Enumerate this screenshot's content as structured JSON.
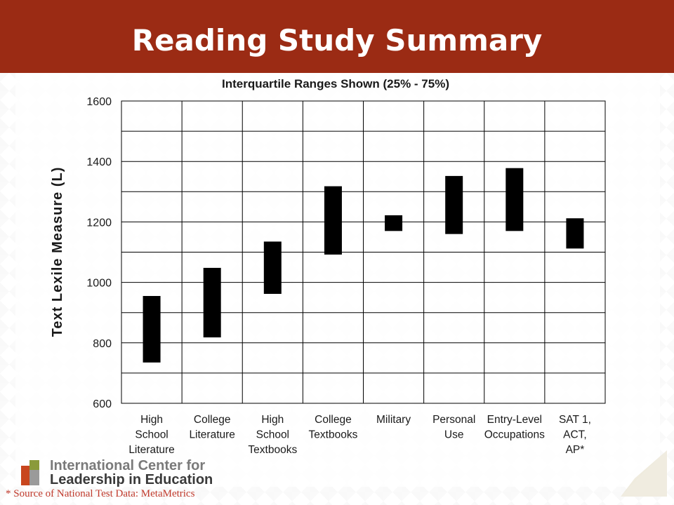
{
  "header": {
    "title": "Reading Study Summary"
  },
  "chart_data": {
    "type": "floating-bar",
    "title": "Interquartile Ranges Shown (25% - 75%)",
    "ylabel": "Text Lexile Measure (L)",
    "xlabel": "",
    "ylim": [
      600,
      1600
    ],
    "yticks": [
      600,
      800,
      1000,
      1200,
      1400,
      1600
    ],
    "grid": true,
    "categories": [
      [
        "High",
        "School",
        "Literature"
      ],
      [
        "College",
        "Literature"
      ],
      [
        "High",
        "School",
        "Textbooks"
      ],
      [
        "College",
        "Textbooks"
      ],
      [
        "Military"
      ],
      [
        "Personal",
        "Use"
      ],
      [
        "Entry-Level",
        "Occupations"
      ],
      [
        "SAT 1,",
        "ACT,",
        "AP*"
      ]
    ],
    "ranges": [
      [
        735,
        955
      ],
      [
        818,
        1048
      ],
      [
        962,
        1135
      ],
      [
        1092,
        1318
      ],
      [
        1170,
        1222
      ],
      [
        1160,
        1352
      ],
      [
        1170,
        1378
      ],
      [
        1112,
        1212
      ]
    ],
    "bar_color": "#000000"
  },
  "logo": {
    "line1": "International Center for",
    "line2": "Leadership in Education",
    "colors": [
      "#c8461e",
      "#8a9a3a",
      "#9a9a9a"
    ]
  },
  "footnote": "* Source of National Test Data: MetaMetrics"
}
